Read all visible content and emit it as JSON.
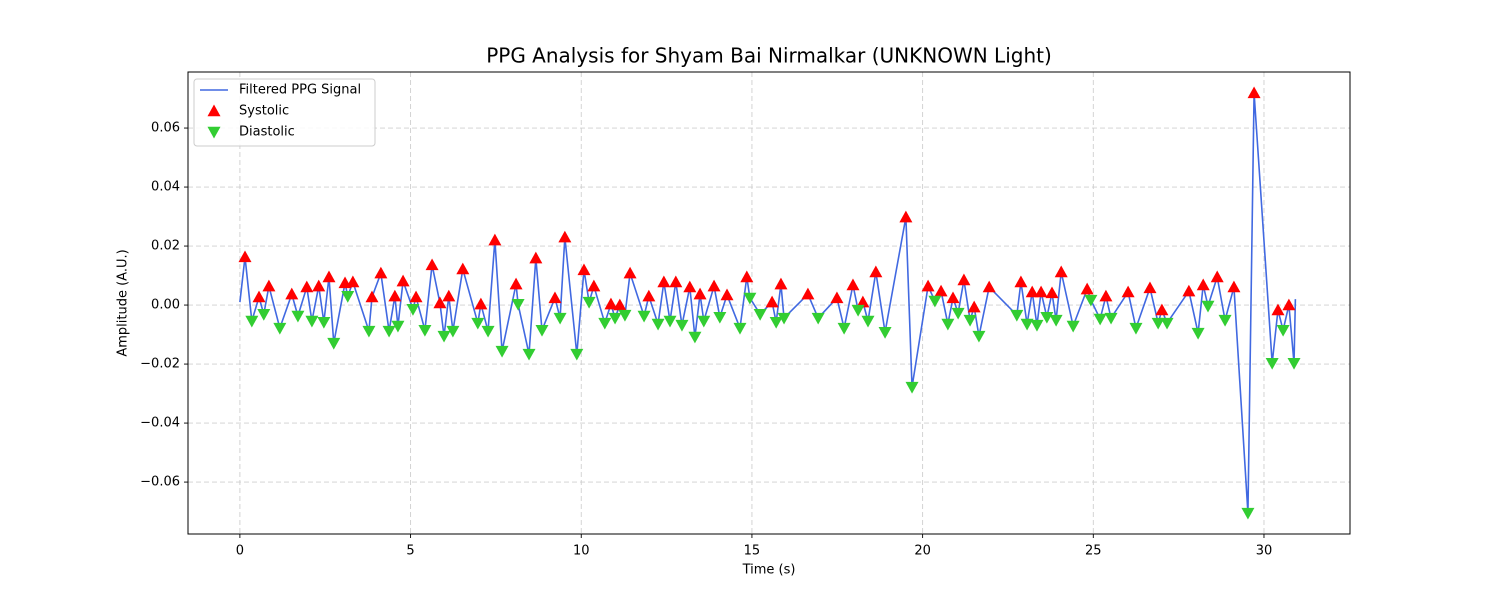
{
  "chart_data": {
    "type": "line",
    "title": "PPG Analysis for Shyam Bai Nirmalkar (UNKNOWN Light)",
    "xlabel": "Time (s)",
    "ylabel": "Amplitude (A.U.)",
    "xlim": [
      -1.52,
      32.52
    ],
    "ylim": [
      -0.0776,
      0.079
    ],
    "xticks": [
      0,
      5,
      10,
      15,
      20,
      25,
      30
    ],
    "yticks": [
      {
        "value": -0.06,
        "label": "−0.06"
      },
      {
        "value": -0.04,
        "label": "−0.04"
      },
      {
        "value": -0.02,
        "label": "−0.02"
      },
      {
        "value": 0.0,
        "label": "0.00"
      },
      {
        "value": 0.02,
        "label": "0.02"
      },
      {
        "value": 0.04,
        "label": "0.04"
      },
      {
        "value": 0.06,
        "label": "0.06"
      }
    ],
    "grid": true,
    "legend": "upper left",
    "series": [
      {
        "name": "Filtered PPG Signal",
        "type": "line",
        "color": "#4169e1",
        "x": [
          0,
          0.15,
          0.35,
          0.56,
          0.7,
          0.85,
          1.17,
          1.52,
          1.7,
          1.96,
          2.11,
          2.31,
          2.46,
          2.61,
          2.75,
          3.08,
          3.16,
          3.31,
          3.78,
          3.87,
          4.13,
          4.37,
          4.54,
          4.63,
          4.78,
          5.07,
          5.16,
          5.42,
          5.63,
          5.86,
          5.98,
          6.12,
          6.24,
          6.53,
          6.97,
          7.06,
          7.27,
          7.47,
          7.68,
          8.09,
          8.15,
          8.47,
          8.67,
          8.85,
          9.23,
          9.38,
          9.52,
          9.87,
          10.08,
          10.23,
          10.37,
          10.69,
          10.87,
          10.99,
          11.13,
          11.28,
          11.43,
          11.84,
          11.98,
          12.25,
          12.42,
          12.6,
          12.77,
          12.95,
          13.18,
          13.33,
          13.48,
          13.59,
          13.89,
          14.06,
          14.27,
          14.65,
          14.85,
          14.94,
          15.24,
          15.59,
          15.71,
          15.85,
          15.94,
          16.64,
          16.94,
          17.49,
          17.7,
          17.96,
          18.11,
          18.25,
          18.4,
          18.63,
          18.9,
          19.51,
          19.69,
          20.16,
          20.36,
          20.54,
          20.74,
          20.89,
          21.04,
          21.21,
          21.39,
          21.51,
          21.65,
          21.95,
          22.76,
          22.88,
          23.06,
          23.21,
          23.35,
          23.47,
          23.64,
          23.79,
          23.91,
          24.06,
          24.41,
          24.82,
          24.93,
          25.2,
          25.37,
          25.52,
          26.02,
          26.25,
          26.66,
          26.9,
          27.01,
          27.16,
          27.8,
          28.07,
          28.22,
          28.36,
          28.63,
          28.86,
          29.12,
          29.53,
          29.71,
          30.24,
          30.41,
          30.56,
          30.73,
          30.88,
          30.92
        ],
        "values": [
          0.001,
          0.0163,
          -0.0054,
          0.0027,
          -0.0031,
          0.0064,
          -0.0078,
          0.0037,
          -0.0037,
          0.0061,
          -0.0054,
          0.0064,
          -0.0058,
          0.0095,
          -0.0129,
          0.0075,
          0.003,
          0.0078,
          -0.0088,
          0.0027,
          0.0108,
          -0.0088,
          0.003,
          -0.0071,
          0.0081,
          -0.0014,
          0.0027,
          -0.0085,
          0.0136,
          0.0007,
          -0.0105,
          0.003,
          -0.0088,
          0.0122,
          -0.0061,
          0.0003,
          -0.0088,
          0.022,
          -0.0156,
          0.0071,
          0.0003,
          -0.0166,
          0.0159,
          -0.0085,
          0.0024,
          -0.0044,
          0.023,
          -0.0166,
          0.0119,
          0.001,
          0.0064,
          -0.0061,
          0.0003,
          -0.0044,
          0.0,
          -0.0034,
          0.0108,
          -0.0037,
          0.003,
          -0.0064,
          0.0078,
          -0.0054,
          0.0078,
          -0.0068,
          0.0061,
          -0.0108,
          0.0037,
          -0.0054,
          0.0064,
          -0.0041,
          0.0034,
          -0.0078,
          0.0095,
          0.0024,
          -0.0031,
          0.001,
          -0.0058,
          0.0071,
          -0.0044,
          0.0037,
          -0.0044,
          0.0024,
          -0.0078,
          0.0068,
          -0.0017,
          0.001,
          -0.0054,
          0.0112,
          -0.0092,
          0.0298,
          -0.0278,
          0.0064,
          0.0014,
          0.0047,
          -0.0064,
          0.0024,
          -0.0027,
          0.0085,
          -0.0051,
          -0.0007,
          -0.0105,
          0.0061,
          -0.0034,
          0.0078,
          -0.0064,
          0.0044,
          -0.0068,
          0.0044,
          -0.0041,
          0.0041,
          -0.0051,
          0.0112,
          -0.0071,
          0.0054,
          0.0017,
          -0.0047,
          0.003,
          -0.0044,
          0.0044,
          -0.0078,
          0.0058,
          -0.0061,
          -0.0017,
          -0.0061,
          0.0047,
          -0.0095,
          0.0068,
          -0.0003,
          0.0095,
          -0.0051,
          0.0061,
          -0.0705,
          0.0719,
          -0.0197,
          -0.0017,
          -0.0085,
          0.0,
          -0.0197,
          0.002
        ]
      },
      {
        "name": "Systolic",
        "type": "scatter",
        "marker": "up",
        "color": "#ff0000",
        "x": [
          0.15,
          0.56,
          0.85,
          1.52,
          1.96,
          2.31,
          2.61,
          3.08,
          3.31,
          3.87,
          4.13,
          4.54,
          4.78,
          5.16,
          5.63,
          5.86,
          6.12,
          6.53,
          7.06,
          7.47,
          8.09,
          8.67,
          9.23,
          9.52,
          10.08,
          10.37,
          10.87,
          11.13,
          11.43,
          11.98,
          12.42,
          12.77,
          13.18,
          13.48,
          13.89,
          14.27,
          14.85,
          15.59,
          15.85,
          16.64,
          17.49,
          17.96,
          18.25,
          18.63,
          19.51,
          20.16,
          20.54,
          20.89,
          21.21,
          21.51,
          21.95,
          22.88,
          23.21,
          23.47,
          23.79,
          24.06,
          24.82,
          25.37,
          26.02,
          26.66,
          27.01,
          27.8,
          28.22,
          28.63,
          29.12,
          29.71,
          30.41,
          30.73
        ],
        "values": [
          0.0163,
          0.0027,
          0.0064,
          0.0037,
          0.0061,
          0.0064,
          0.0095,
          0.0075,
          0.0078,
          0.0027,
          0.0108,
          0.003,
          0.0081,
          0.0027,
          0.0136,
          0.0007,
          0.003,
          0.0122,
          0.0003,
          0.022,
          0.0071,
          0.0159,
          0.0024,
          0.023,
          0.0119,
          0.0064,
          0.0003,
          0.0,
          0.0108,
          0.003,
          0.0078,
          0.0078,
          0.0061,
          0.0037,
          0.0064,
          0.0034,
          0.0095,
          0.001,
          0.0071,
          0.0037,
          0.0024,
          0.0068,
          0.001,
          0.0112,
          0.0298,
          0.0064,
          0.0047,
          0.0024,
          0.0085,
          -0.0007,
          0.0061,
          0.0078,
          0.0044,
          0.0044,
          0.0041,
          0.0112,
          0.0054,
          0.003,
          0.0044,
          0.0058,
          -0.0017,
          0.0047,
          0.0068,
          0.0095,
          0.0061,
          0.0719,
          -0.0017,
          0.0
        ]
      },
      {
        "name": "Diastolic",
        "type": "scatter",
        "marker": "down",
        "color": "#32cd32",
        "x": [
          0.35,
          0.7,
          1.17,
          1.7,
          2.11,
          2.46,
          2.75,
          3.16,
          3.78,
          4.37,
          4.63,
          5.07,
          5.42,
          5.98,
          6.24,
          6.97,
          7.27,
          7.68,
          8.15,
          8.47,
          8.85,
          9.38,
          9.87,
          10.23,
          10.69,
          10.99,
          11.28,
          11.84,
          12.25,
          12.6,
          12.95,
          13.33,
          13.59,
          14.06,
          14.65,
          14.94,
          15.24,
          15.71,
          15.94,
          16.94,
          17.7,
          18.11,
          18.4,
          18.9,
          19.69,
          20.36,
          20.74,
          21.04,
          21.39,
          21.65,
          22.76,
          23.06,
          23.35,
          23.64,
          23.91,
          24.41,
          24.93,
          25.2,
          25.52,
          26.25,
          26.9,
          27.16,
          28.07,
          28.36,
          28.86,
          29.53,
          30.24,
          30.56,
          30.88
        ],
        "values": [
          -0.0054,
          -0.0031,
          -0.0078,
          -0.0037,
          -0.0054,
          -0.0058,
          -0.0129,
          0.003,
          -0.0088,
          -0.0088,
          -0.0071,
          -0.0014,
          -0.0085,
          -0.0105,
          -0.0088,
          -0.0061,
          -0.0088,
          -0.0156,
          0.0003,
          -0.0166,
          -0.0085,
          -0.0044,
          -0.0166,
          0.001,
          -0.0061,
          -0.0044,
          -0.0034,
          -0.0037,
          -0.0064,
          -0.0054,
          -0.0068,
          -0.0108,
          -0.0054,
          -0.0041,
          -0.0078,
          0.0024,
          -0.0031,
          -0.0058,
          -0.0044,
          -0.0044,
          -0.0078,
          -0.0017,
          -0.0054,
          -0.0092,
          -0.0278,
          0.0014,
          -0.0064,
          -0.0027,
          -0.0051,
          -0.0105,
          -0.0034,
          -0.0064,
          -0.0068,
          -0.0041,
          -0.0051,
          -0.0071,
          0.0017,
          -0.0047,
          -0.0044,
          -0.0078,
          -0.0061,
          -0.0061,
          -0.0095,
          -0.0003,
          -0.0051,
          -0.0705,
          -0.0197,
          -0.0085,
          -0.0197
        ]
      }
    ]
  }
}
